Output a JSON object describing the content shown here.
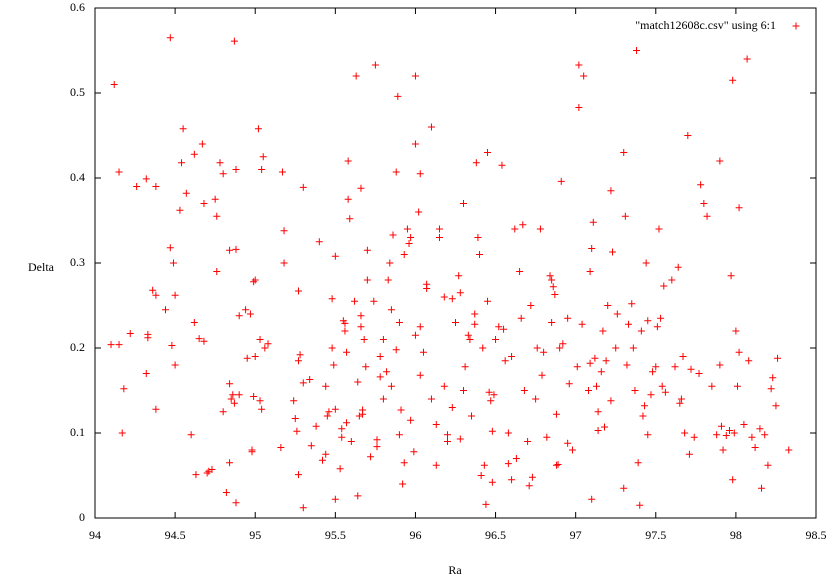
{
  "chart_data": {
    "type": "scatter",
    "x_label": "Ra",
    "y_label": "Delta",
    "xlim": [
      94,
      98.5
    ],
    "xticks": [
      94,
      94.5,
      95,
      95.5,
      96,
      96.5,
      97,
      97.5,
      98,
      98.5
    ],
    "ylim": [
      0,
      0.6
    ],
    "yticks": [
      0,
      0.1,
      0.2,
      0.3,
      0.4,
      0.5,
      0.6
    ],
    "legend": "top-right",
    "x": [
      94.12,
      94.15,
      94.1,
      94.15,
      94.18,
      94.17,
      94.22,
      94.26,
      94.32,
      94.33,
      94.33,
      94.32,
      94.36,
      94.38,
      94.38,
      94.38,
      94.44,
      94.47,
      94.47,
      94.48,
      94.49,
      94.5,
      94.5,
      94.53,
      94.54,
      94.55,
      94.57,
      94.6,
      94.62,
      94.62,
      94.63,
      94.65,
      94.67,
      94.68,
      94.68,
      94.7,
      94.71,
      94.73,
      94.75,
      94.76,
      94.76,
      94.78,
      94.8,
      94.82,
      94.8,
      94.84,
      94.84,
      94.84,
      94.85,
      94.86,
      94.87,
      94.87,
      94.88,
      94.88,
      94.88,
      94.9,
      94.9,
      94.94,
      94.95,
      94.97,
      94.98,
      94.98,
      94.99,
      94.99,
      95.0,
      95.0,
      95.02,
      95.03,
      95.03,
      95.04,
      95.04,
      95.05,
      95.06,
      95.08,
      95.16,
      95.17,
      95.18,
      95.18,
      95.24,
      95.25,
      95.26,
      95.27,
      95.27,
      95.27,
      95.28,
      95.3,
      95.3,
      95.3,
      95.34,
      95.35,
      95.38,
      95.4,
      95.42,
      95.44,
      95.44,
      95.45,
      95.46,
      95.48,
      95.48,
      95.49,
      95.5,
      95.5,
      95.5,
      95.53,
      95.54,
      95.54,
      95.55,
      95.56,
      95.56,
      95.57,
      95.57,
      95.58,
      95.58,
      95.59,
      95.6,
      95.62,
      95.63,
      95.64,
      95.64,
      95.65,
      95.66,
      95.66,
      95.66,
      95.67,
      95.67,
      95.68,
      95.69,
      95.7,
      95.7,
      95.72,
      95.74,
      95.75,
      95.76,
      95.76,
      95.78,
      95.78,
      95.8,
      95.8,
      95.82,
      95.83,
      95.84,
      95.85,
      95.85,
      95.86,
      95.88,
      95.88,
      95.89,
      95.9,
      95.9,
      95.91,
      95.92,
      95.93,
      95.93,
      95.95,
      95.96,
      95.97,
      95.97,
      95.99,
      96.0,
      96.0,
      96.0,
      96.02,
      96.03,
      96.03,
      96.03,
      96.05,
      96.07,
      96.07,
      96.1,
      96.1,
      96.13,
      96.13,
      96.15,
      96.15,
      96.18,
      96.18,
      96.2,
      96.2,
      96.23,
      96.23,
      96.25,
      96.27,
      96.28,
      96.28,
      96.3,
      96.3,
      96.31,
      96.33,
      96.34,
      96.35,
      96.37,
      96.37,
      96.38,
      96.39,
      96.4,
      96.41,
      96.42,
      96.43,
      96.44,
      96.45,
      96.45,
      96.46,
      96.47,
      96.48,
      96.48,
      96.49,
      96.5,
      96.52,
      96.54,
      96.55,
      96.56,
      96.58,
      96.58,
      96.6,
      96.6,
      96.62,
      96.63,
      96.65,
      96.66,
      96.67,
      96.68,
      96.7,
      96.71,
      96.72,
      96.73,
      96.75,
      96.76,
      96.78,
      96.79,
      96.8,
      96.82,
      96.84,
      96.85,
      96.85,
      96.86,
      96.87,
      96.88,
      96.88,
      96.89,
      96.9,
      96.91,
      96.92,
      96.95,
      96.96,
      96.95,
      96.98,
      97.01,
      97.02,
      97.02,
      97.04,
      97.05,
      97.08,
      97.09,
      97.09,
      97.1,
      97.1,
      97.11,
      97.12,
      97.13,
      97.14,
      97.14,
      97.16,
      97.17,
      97.18,
      97.19,
      97.2,
      97.22,
      97.22,
      97.23,
      97.25,
      97.26,
      97.3,
      97.3,
      97.31,
      97.32,
      97.33,
      97.35,
      97.36,
      97.37,
      97.38,
      97.39,
      97.4,
      97.41,
      97.42,
      97.43,
      97.44,
      97.45,
      97.45,
      97.47,
      97.48,
      97.5,
      97.51,
      97.52,
      97.53,
      97.54,
      97.55,
      97.56,
      97.6,
      97.62,
      97.64,
      97.65,
      97.66,
      97.67,
      97.68,
      97.7,
      97.71,
      97.72,
      97.74,
      97.77,
      97.78,
      97.8,
      97.82,
      97.85,
      97.88,
      97.9,
      97.9,
      97.91,
      97.92,
      97.94,
      97.96,
      97.97,
      97.98,
      97.98,
      97.99,
      98.0,
      98.01,
      98.02,
      98.02,
      98.05,
      98.07,
      98.08,
      98.1,
      98.12,
      98.15,
      98.16,
      98.18,
      98.2,
      98.22,
      98.23,
      98.25,
      98.26,
      98.33
    ],
    "series": [
      {
        "name": "\"match12608c.csv\" using 6:1",
        "color": "#ff0000",
        "values": [
          0.51,
          0.407,
          0.204,
          0.204,
          0.152,
          0.1,
          0.217,
          0.39,
          0.399,
          0.216,
          0.212,
          0.17,
          0.268,
          0.262,
          0.39,
          0.128,
          0.245,
          0.565,
          0.318,
          0.203,
          0.3,
          0.262,
          0.18,
          0.362,
          0.418,
          0.458,
          0.382,
          0.098,
          0.428,
          0.23,
          0.051,
          0.211,
          0.44,
          0.37,
          0.208,
          0.053,
          0.055,
          0.057,
          0.375,
          0.355,
          0.29,
          0.418,
          0.405,
          0.03,
          0.125,
          0.065,
          0.158,
          0.315,
          0.14,
          0.145,
          0.135,
          0.561,
          0.41,
          0.316,
          0.018,
          0.238,
          0.145,
          0.245,
          0.188,
          0.24,
          0.08,
          0.078,
          0.278,
          0.143,
          0.19,
          0.28,
          0.458,
          0.21,
          0.138,
          0.128,
          0.41,
          0.425,
          0.2,
          0.205,
          0.083,
          0.407,
          0.338,
          0.3,
          0.138,
          0.117,
          0.102,
          0.051,
          0.185,
          0.267,
          0.192,
          0.389,
          0.012,
          0.159,
          0.163,
          0.085,
          0.108,
          0.325,
          0.068,
          0.155,
          0.075,
          0.12,
          0.125,
          0.258,
          0.2,
          0.18,
          0.128,
          0.022,
          0.308,
          0.058,
          0.095,
          0.105,
          0.232,
          0.22,
          0.229,
          0.112,
          0.195,
          0.42,
          0.375,
          0.352,
          0.09,
          0.255,
          0.52,
          0.16,
          0.026,
          0.12,
          0.225,
          0.388,
          0.238,
          0.122,
          0.127,
          0.21,
          0.178,
          0.28,
          0.315,
          0.072,
          0.255,
          0.533,
          0.084,
          0.092,
          0.166,
          0.19,
          0.14,
          0.21,
          0.172,
          0.28,
          0.3,
          0.245,
          0.155,
          0.333,
          0.407,
          0.198,
          0.496,
          0.098,
          0.23,
          0.127,
          0.04,
          0.31,
          0.065,
          0.34,
          0.323,
          0.115,
          0.33,
          0.078,
          0.52,
          0.215,
          0.44,
          0.36,
          0.168,
          0.405,
          0.225,
          0.195,
          0.27,
          0.275,
          0.46,
          0.14,
          0.062,
          0.11,
          0.34,
          0.33,
          0.26,
          0.155,
          0.098,
          0.09,
          0.13,
          0.258,
          0.23,
          0.285,
          0.093,
          0.265,
          0.37,
          0.15,
          0.178,
          0.215,
          0.21,
          0.12,
          0.228,
          0.24,
          0.418,
          0.33,
          0.31,
          0.05,
          0.2,
          0.062,
          0.016,
          0.43,
          0.255,
          0.148,
          0.138,
          0.042,
          0.102,
          0.145,
          0.21,
          0.225,
          0.415,
          0.222,
          0.185,
          0.064,
          0.1,
          0.045,
          0.19,
          0.34,
          0.07,
          0.29,
          0.235,
          0.345,
          0.15,
          0.09,
          0.038,
          0.25,
          0.048,
          0.14,
          0.2,
          0.34,
          0.168,
          0.195,
          0.095,
          0.285,
          0.23,
          0.28,
          0.272,
          0.263,
          0.062,
          0.122,
          0.063,
          0.2,
          0.396,
          0.205,
          0.088,
          0.158,
          0.235,
          0.08,
          0.178,
          0.533,
          0.483,
          0.228,
          0.52,
          0.15,
          0.182,
          0.29,
          0.317,
          0.022,
          0.348,
          0.188,
          0.155,
          0.125,
          0.103,
          0.172,
          0.22,
          0.107,
          0.185,
          0.25,
          0.138,
          0.385,
          0.313,
          0.2,
          0.24,
          0.035,
          0.43,
          0.355,
          0.18,
          0.228,
          0.252,
          0.2,
          0.15,
          0.55,
          0.065,
          0.015,
          0.22,
          0.12,
          0.132,
          0.3,
          0.232,
          0.098,
          0.145,
          0.172,
          0.178,
          0.225,
          0.34,
          0.235,
          0.155,
          0.273,
          0.148,
          0.28,
          0.178,
          0.295,
          0.135,
          0.14,
          0.19,
          0.1,
          0.45,
          0.075,
          0.175,
          0.095,
          0.17,
          0.392,
          0.37,
          0.355,
          0.155,
          0.098,
          0.42,
          0.18,
          0.108,
          0.08,
          0.097,
          0.103,
          0.285,
          0.045,
          0.515,
          0.1,
          0.22,
          0.155,
          0.195,
          0.365,
          0.11,
          0.54,
          0.185,
          0.095,
          0.083,
          0.105,
          0.035,
          0.098,
          0.062,
          0.152,
          0.165,
          0.132,
          0.188,
          0.08
        ]
      }
    ]
  }
}
